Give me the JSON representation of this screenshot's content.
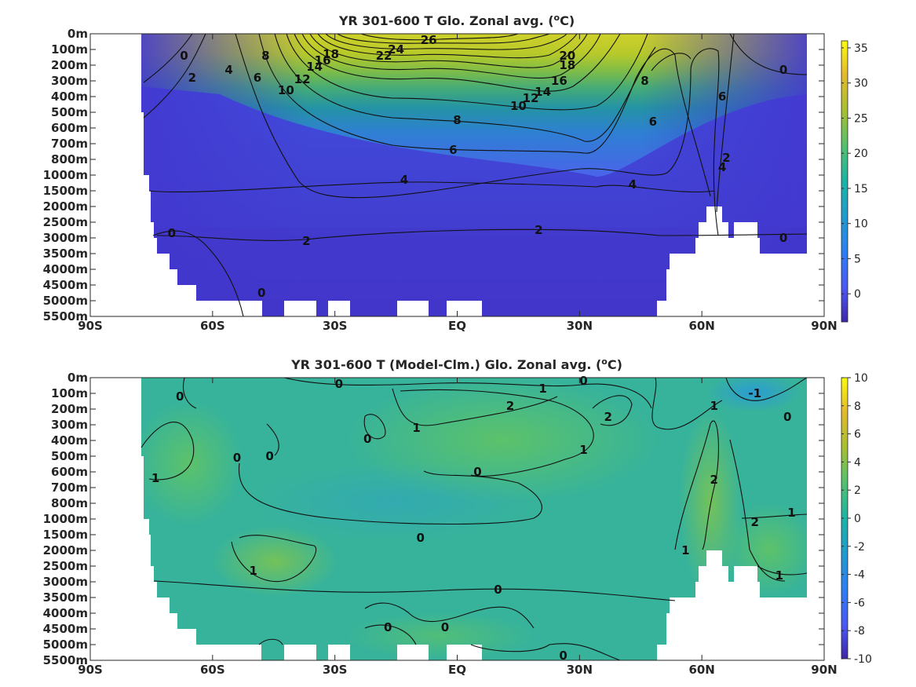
{
  "chart_data": [
    {
      "type": "heatmap",
      "title": "YR 301-600 T Glo. Zonal avg. (",
      "title_sup": "o",
      "title_tail": "C)",
      "x_ticks": [
        "90S",
        "60S",
        "30S",
        "EQ",
        "30N",
        "60N",
        "90N"
      ],
      "x_values": [
        -90,
        -60,
        -30,
        0,
        30,
        60,
        90
      ],
      "y_ticks": [
        "0m",
        "100m",
        "200m",
        "300m",
        "400m",
        "500m",
        "600m",
        "700m",
        "800m",
        "1000m",
        "1500m",
        "2000m",
        "2500m",
        "3000m",
        "3500m",
        "4000m",
        "4500m",
        "5000m",
        "5500m"
      ],
      "colorbar": {
        "ticks": [
          "35",
          "30",
          "25",
          "20",
          "15",
          "10",
          "5",
          "0"
        ],
        "values": [
          35,
          30,
          25,
          20,
          15,
          10,
          5,
          0
        ],
        "range": [
          -4,
          36
        ]
      },
      "contour_labels": [
        {
          "text": "26",
          "lat": -7,
          "level": 0.4
        },
        {
          "text": "24",
          "lat": -15,
          "level": 1.0
        },
        {
          "text": "22",
          "lat": -18,
          "level": 1.4
        },
        {
          "text": "20",
          "lat": 27,
          "level": 1.4
        },
        {
          "text": "18",
          "lat": -31,
          "level": 1.3
        },
        {
          "text": "18",
          "lat": 27,
          "level": 2.0
        },
        {
          "text": "16",
          "lat": -33,
          "level": 1.7
        },
        {
          "text": "16",
          "lat": 25,
          "level": 3.0
        },
        {
          "text": "14",
          "lat": -35,
          "level": 2.1
        },
        {
          "text": "14",
          "lat": 21,
          "level": 3.7
        },
        {
          "text": "12",
          "lat": -38,
          "level": 2.9
        },
        {
          "text": "12",
          "lat": 18,
          "level": 4.1
        },
        {
          "text": "10",
          "lat": -42,
          "level": 3.6
        },
        {
          "text": "10",
          "lat": 15,
          "level": 4.6
        },
        {
          "text": "8",
          "lat": -47,
          "level": 1.4
        },
        {
          "text": "8",
          "lat": 46,
          "level": 3.0
        },
        {
          "text": "8",
          "lat": 0,
          "level": 5.5
        },
        {
          "text": "6",
          "lat": -49,
          "level": 2.8
        },
        {
          "text": "6",
          "lat": 48,
          "level": 5.6
        },
        {
          "text": "6",
          "lat": -1,
          "level": 7.4
        },
        {
          "text": "6",
          "lat": 65,
          "level": 4.0
        },
        {
          "text": "4",
          "lat": -56,
          "level": 2.3
        },
        {
          "text": "4",
          "lat": -13,
          "level": 9.3
        },
        {
          "text": "4",
          "lat": 43,
          "level": 9.6
        },
        {
          "text": "4",
          "lat": 65,
          "level": 8.5
        },
        {
          "text": "2",
          "lat": 66,
          "level": 7.9
        },
        {
          "text": "2",
          "lat": -65,
          "level": 2.8
        },
        {
          "text": "2",
          "lat": -37,
          "level": 13.2
        },
        {
          "text": "2",
          "lat": 20,
          "level": 12.5
        },
        {
          "text": "0",
          "lat": -67,
          "level": 1.4
        },
        {
          "text": "0",
          "lat": -70,
          "level": 12.7
        },
        {
          "text": "0",
          "lat": -48,
          "level": 16.5
        },
        {
          "text": "0",
          "lat": 80,
          "level": 2.3
        },
        {
          "text": "0",
          "lat": 80,
          "level": 13.0
        }
      ]
    },
    {
      "type": "heatmap",
      "title": "YR 301-600 T (Model-Clm.) Glo. Zonal avg. (",
      "title_sup": "o",
      "title_tail": "C)",
      "x_ticks": [
        "90S",
        "60S",
        "30S",
        "EQ",
        "30N",
        "60N",
        "90N"
      ],
      "x_values": [
        -90,
        -60,
        -30,
        0,
        30,
        60,
        90
      ],
      "y_ticks": [
        "0m",
        "100m",
        "200m",
        "300m",
        "400m",
        "500m",
        "600m",
        "700m",
        "800m",
        "1000m",
        "1500m",
        "2000m",
        "2500m",
        "3000m",
        "3500m",
        "4000m",
        "4500m",
        "5000m",
        "5500m"
      ],
      "colorbar": {
        "ticks": [
          "10",
          "8",
          "6",
          "4",
          "2",
          "0",
          "-2",
          "-4",
          "-6",
          "-8",
          "-10"
        ],
        "values": [
          10,
          8,
          6,
          4,
          2,
          0,
          -2,
          -4,
          -6,
          -8,
          -10
        ],
        "range": [
          -10,
          10
        ]
      },
      "contour_labels": [
        {
          "text": "0",
          "lat": -68,
          "level": 1.2
        },
        {
          "text": "0",
          "lat": -29,
          "level": 0.4
        },
        {
          "text": "0",
          "lat": 31,
          "level": 0.2
        },
        {
          "text": "1",
          "lat": 21,
          "level": 0.7
        },
        {
          "text": "2",
          "lat": 13,
          "level": 1.8
        },
        {
          "text": "2",
          "lat": 37,
          "level": 2.5
        },
        {
          "text": "-1",
          "lat": 73,
          "level": 1.0
        },
        {
          "text": "1",
          "lat": 63,
          "level": 1.8
        },
        {
          "text": "0",
          "lat": 81,
          "level": 2.5
        },
        {
          "text": "0",
          "lat": -22,
          "level": 3.9
        },
        {
          "text": "1",
          "lat": -10,
          "level": 3.2
        },
        {
          "text": "0",
          "lat": -46,
          "level": 5.0
        },
        {
          "text": "0",
          "lat": -54,
          "level": 5.1
        },
        {
          "text": "1",
          "lat": 31,
          "level": 4.6
        },
        {
          "text": "1",
          "lat": -74,
          "level": 6.4
        },
        {
          "text": "0",
          "lat": 5,
          "level": 6.0
        },
        {
          "text": "2",
          "lat": 63,
          "level": 6.5
        },
        {
          "text": "2",
          "lat": 73,
          "level": 9.2
        },
        {
          "text": "1",
          "lat": 82,
          "level": 8.6
        },
        {
          "text": "0",
          "lat": -9,
          "level": 10.2
        },
        {
          "text": "1",
          "lat": 56,
          "level": 11.0
        },
        {
          "text": "1",
          "lat": -50,
          "level": 12.3
        },
        {
          "text": "1",
          "lat": 79,
          "level": 12.6
        },
        {
          "text": "0",
          "lat": 10,
          "level": 13.5
        },
        {
          "text": "0",
          "lat": -17,
          "level": 15.9
        },
        {
          "text": "0",
          "lat": -3,
          "level": 15.9
        },
        {
          "text": "0",
          "lat": 26,
          "level": 17.7
        }
      ]
    }
  ]
}
